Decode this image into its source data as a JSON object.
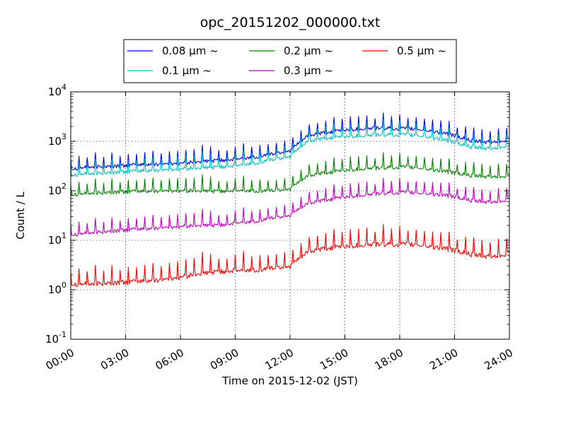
{
  "chart_data": {
    "type": "line",
    "title": "opc_20151202_000000.txt",
    "xlabel": "Time on 2015-12-02 (JST)",
    "ylabel": "Count / L",
    "yscale": "log",
    "xlim_hours": [
      0,
      24
    ],
    "ylim": [
      0.1,
      10000
    ],
    "grid": true,
    "legend_position": "top",
    "x_ticks": [
      "00:00",
      "03:00",
      "06:00",
      "09:00",
      "12:00",
      "15:00",
      "18:00",
      "21:00",
      "24:00"
    ],
    "y_ticks": [
      {
        "base": "10",
        "exp": "-1"
      },
      {
        "base": "10",
        "exp": "0"
      },
      {
        "base": "10",
        "exp": "1"
      },
      {
        "base": "10",
        "exp": "2"
      },
      {
        "base": "10",
        "exp": "3"
      },
      {
        "base": "10",
        "exp": "4"
      }
    ],
    "hours": [
      0,
      1,
      2,
      3,
      4,
      5,
      6,
      7,
      8,
      9,
      10,
      11,
      12,
      13,
      14,
      15,
      16,
      17,
      18,
      19,
      20,
      21,
      22,
      23,
      24
    ],
    "series": [
      {
        "name": "0.08 μm ~",
        "color": "#0000ff",
        "values": [
          280,
          300,
          310,
          320,
          340,
          350,
          360,
          390,
          410,
          430,
          480,
          550,
          650,
          1300,
          1500,
          1700,
          1800,
          1850,
          1800,
          1750,
          1550,
          1300,
          1000,
          950,
          1100
        ]
      },
      {
        "name": "0.1 μm ~",
        "color": "#00bfbf",
        "values": [
          210,
          220,
          230,
          240,
          255,
          265,
          275,
          290,
          300,
          320,
          360,
          420,
          500,
          1000,
          1150,
          1250,
          1300,
          1350,
          1350,
          1300,
          1150,
          950,
          750,
          700,
          850
        ]
      },
      {
        "name": "0.2 μm ~",
        "color": "#008000",
        "values": [
          85,
          88,
          92,
          95,
          98,
          100,
          100,
          100,
          98,
          100,
          100,
          100,
          110,
          200,
          230,
          260,
          280,
          290,
          300,
          290,
          260,
          230,
          200,
          190,
          205
        ]
      },
      {
        "name": "0.3 μm ~",
        "color": "#bf00bf",
        "values": [
          13,
          14,
          15,
          16,
          17,
          18,
          19,
          20,
          20,
          22,
          24,
          28,
          32,
          55,
          65,
          75,
          82,
          88,
          92,
          90,
          85,
          75,
          62,
          58,
          68
        ]
      },
      {
        "name": "0.5 μm ~",
        "color": "#ff0000",
        "values": [
          1.3,
          1.3,
          1.35,
          1.4,
          1.5,
          1.6,
          1.8,
          2.1,
          2.3,
          2.4,
          2.5,
          2.7,
          3.0,
          5.8,
          6.8,
          7.5,
          8.0,
          8.3,
          8.2,
          8.0,
          7.2,
          6.2,
          5.0,
          4.6,
          5.5
        ]
      }
    ]
  }
}
